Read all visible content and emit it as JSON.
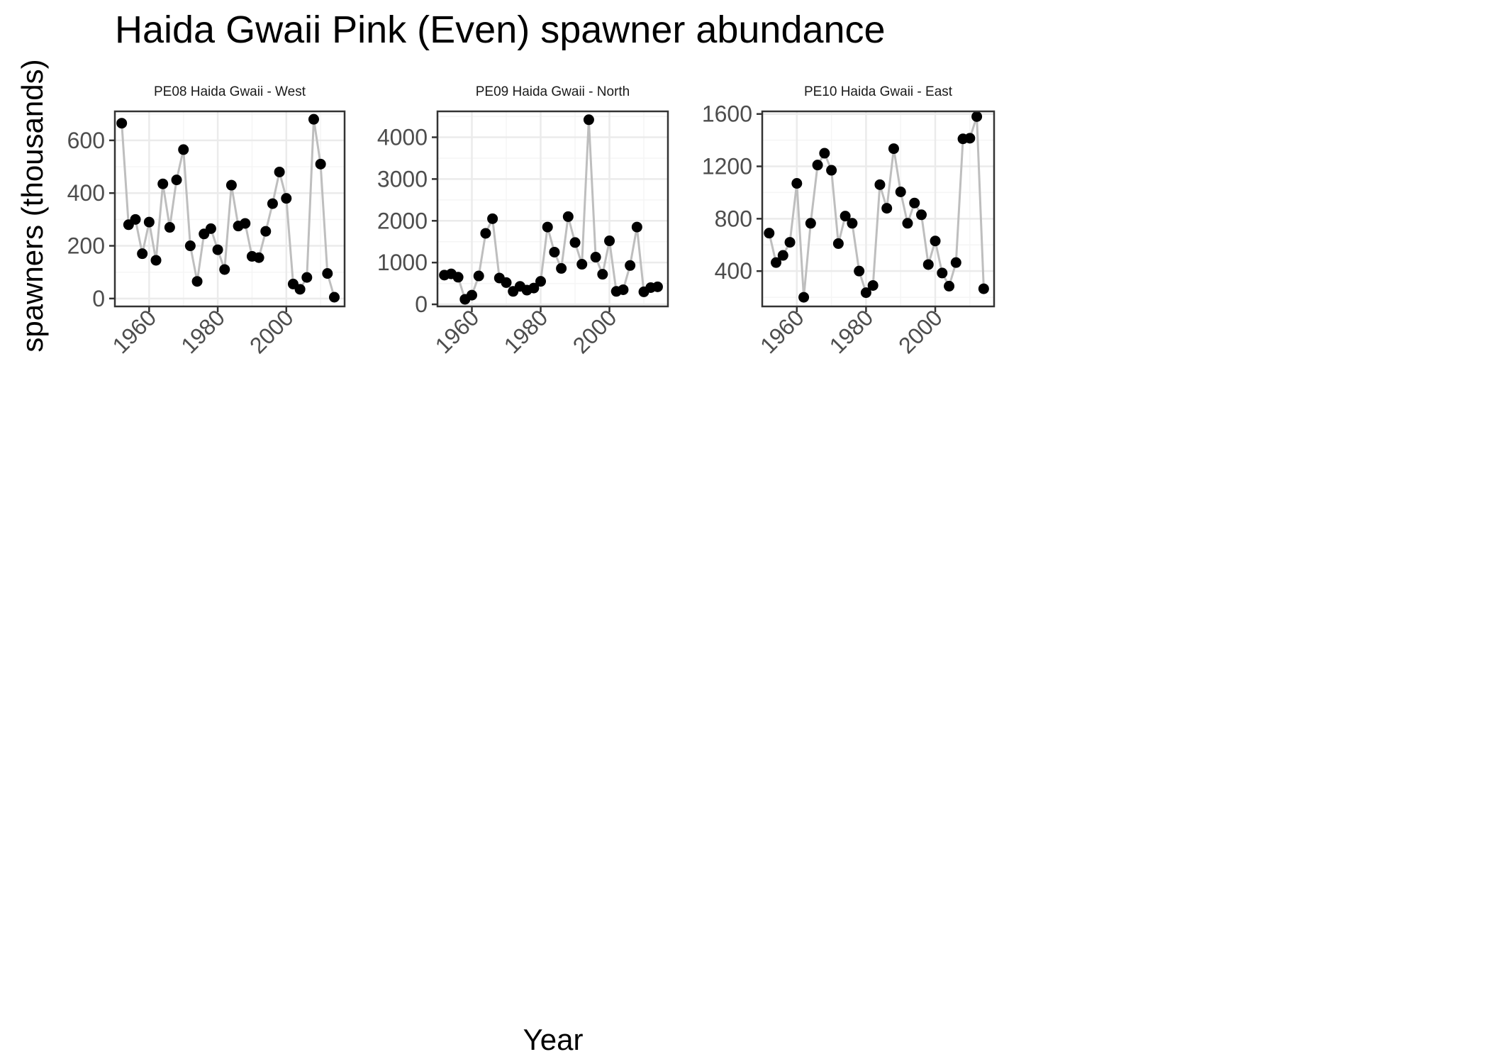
{
  "title": "Haida Gwaii Pink (Even) spawner abundance",
  "xlabel": "Year",
  "ylabel": "spawners (thousands)",
  "colors": {
    "line": "#bebebe",
    "point": "#000000",
    "grid_major": "#ebebeb",
    "grid_minor": "#f5f5f5",
    "border": "#333333",
    "tick_text": "#4d4d4d"
  },
  "chart_data": [
    {
      "type": "line",
      "panel_title": "PE08 Haida Gwaii - West",
      "xlim": [
        1950,
        2017
      ],
      "ylim": [
        -30,
        710
      ],
      "xticks": [
        1960,
        1980,
        2000
      ],
      "yticks": [
        0,
        200,
        400,
        600
      ],
      "grid": true,
      "x": [
        1952,
        1954,
        1956,
        1958,
        1960,
        1962,
        1964,
        1966,
        1968,
        1970,
        1972,
        1974,
        1976,
        1978,
        1980,
        1982,
        1984,
        1986,
        1988,
        1990,
        1992,
        1994,
        1996,
        1998,
        2000,
        2002,
        2004,
        2006,
        2008,
        2010,
        2012,
        2014
      ],
      "y": [
        665,
        280,
        300,
        170,
        290,
        145,
        435,
        270,
        450,
        565,
        200,
        65,
        245,
        265,
        185,
        110,
        430,
        275,
        285,
        160,
        155,
        255,
        360,
        480,
        380,
        55,
        35,
        80,
        680,
        510,
        95,
        5
      ]
    },
    {
      "type": "line",
      "panel_title": "PE09 Haida Gwaii - North",
      "xlim": [
        1950,
        2017
      ],
      "ylim": [
        -50,
        4620
      ],
      "xticks": [
        1960,
        1980,
        2000
      ],
      "yticks": [
        0,
        1000,
        2000,
        3000,
        4000
      ],
      "grid": true,
      "x": [
        1952,
        1954,
        1956,
        1958,
        1960,
        1962,
        1964,
        1966,
        1968,
        1970,
        1972,
        1974,
        1976,
        1978,
        1980,
        1982,
        1984,
        1986,
        1988,
        1990,
        1992,
        1994,
        1996,
        1998,
        2000,
        2002,
        2004,
        2006,
        2008,
        2010,
        2012,
        2014
      ],
      "y": [
        700,
        730,
        650,
        120,
        220,
        680,
        1700,
        2050,
        630,
        520,
        310,
        430,
        340,
        390,
        550,
        1850,
        1250,
        860,
        2100,
        1480,
        960,
        4420,
        1130,
        720,
        1520,
        310,
        350,
        930,
        1850,
        300,
        400,
        420
      ]
    },
    {
      "type": "line",
      "panel_title": "PE10 Haida Gwaii - East",
      "xlim": [
        1950,
        2017
      ],
      "ylim": [
        130,
        1620
      ],
      "xticks": [
        1960,
        1980,
        2000
      ],
      "yticks": [
        400,
        800,
        1200,
        1600
      ],
      "grid": true,
      "x": [
        1952,
        1954,
        1956,
        1958,
        1960,
        1962,
        1964,
        1966,
        1968,
        1970,
        1972,
        1974,
        1976,
        1978,
        1980,
        1982,
        1984,
        1986,
        1988,
        1990,
        1992,
        1994,
        1996,
        1998,
        2000,
        2002,
        2004,
        2006,
        2008,
        2010,
        2012,
        2014
      ],
      "y": [
        690,
        465,
        520,
        620,
        1070,
        200,
        765,
        1210,
        1300,
        1170,
        610,
        820,
        765,
        400,
        235,
        290,
        1060,
        880,
        1335,
        1005,
        765,
        920,
        830,
        450,
        630,
        385,
        285,
        465,
        1410,
        1415,
        1580,
        265
      ]
    }
  ]
}
